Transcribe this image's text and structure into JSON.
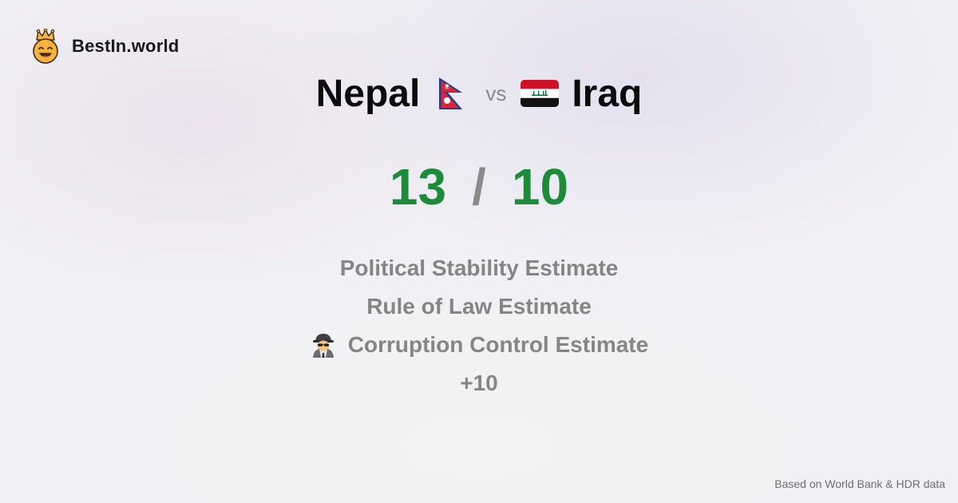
{
  "brand": {
    "name": "BestIn.world",
    "logo_icon": "crown-smiley-icon"
  },
  "comparison": {
    "left_country": "Nepal",
    "left_flag_icon": "nepal-flag-icon",
    "vs_label": "vs",
    "right_country": "Iraq",
    "right_flag_icon": "iraq-flag-icon"
  },
  "score": {
    "left": "13",
    "separator": "/",
    "right": "10",
    "score_color": "#1c8c3a"
  },
  "criteria": [
    {
      "label": "Political Stability Estimate"
    },
    {
      "label": "Rule of Law Estimate"
    },
    {
      "label": "Corruption Control Estimate",
      "icon": "spy-icon"
    },
    {
      "label": "+10"
    }
  ],
  "footer": {
    "source": "Based on World Bank & HDR data"
  }
}
